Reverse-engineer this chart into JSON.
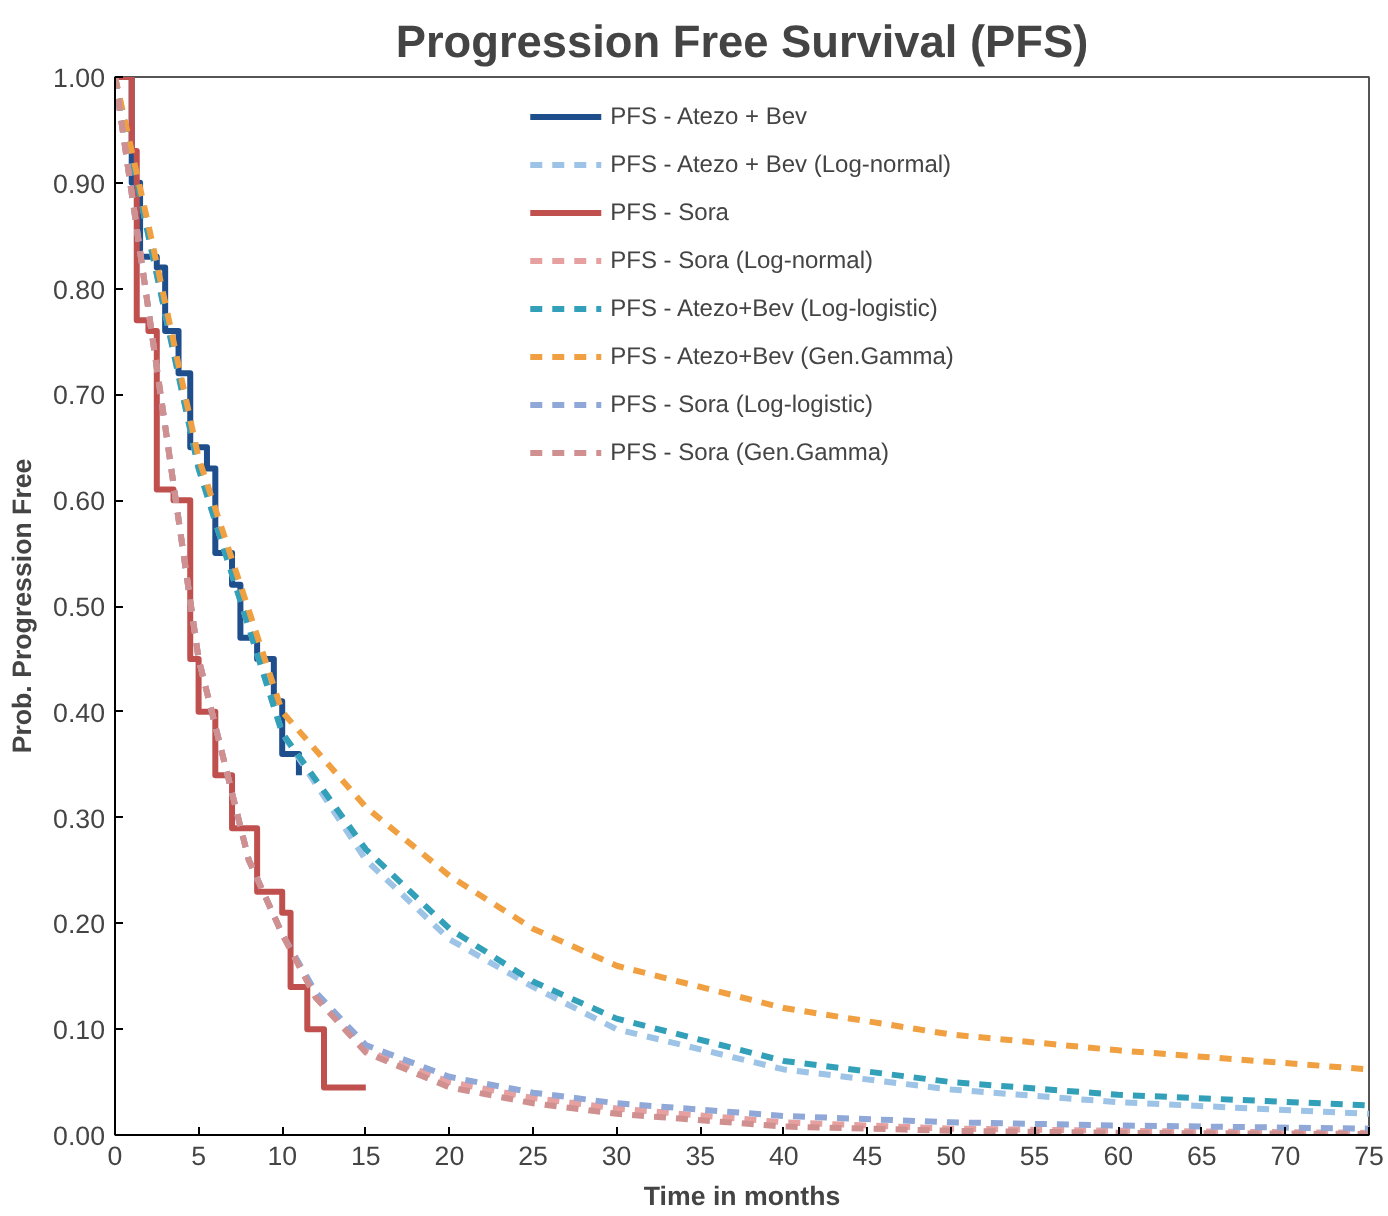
{
  "chart_data": {
    "type": "line",
    "title": "Progression Free Survival (PFS)",
    "xlabel": "Time in months",
    "ylabel": "Prob. Progression Free",
    "xlim": [
      0,
      75
    ],
    "xticks": [
      0,
      5,
      10,
      15,
      20,
      25,
      30,
      35,
      40,
      45,
      50,
      55,
      60,
      65,
      70,
      75
    ],
    "ylim": [
      0,
      1
    ],
    "yticks": [
      {
        "value": 0,
        "label": "0.00"
      },
      {
        "value": 0.1,
        "label": "0.10"
      },
      {
        "value": 0.2,
        "label": "0.20"
      },
      {
        "value": 0.3,
        "label": "0.30"
      },
      {
        "value": 0.4,
        "label": "0.40"
      },
      {
        "value": 0.5,
        "label": "0.50"
      },
      {
        "value": 0.6,
        "label": "0.60"
      },
      {
        "value": 0.7,
        "label": "0.70"
      },
      {
        "value": 0.8,
        "label": "0.80"
      },
      {
        "value": 0.9,
        "label": "0.90"
      },
      {
        "value": 1,
        "label": "1.00"
      }
    ],
    "grid": false,
    "legend": "top",
    "marker": "none",
    "series": [
      {
        "name": "PFS - Atezo + Bev",
        "type": "step",
        "line_style": "solid",
        "color": "#1f4e8c",
        "x": [
          0,
          1,
          1.5,
          2.5,
          3,
          3.8,
          4.5,
          5.5,
          6,
          7,
          7.5,
          8.5,
          9.5,
          10,
          11
        ],
        "values": [
          1,
          0.9,
          0.83,
          0.82,
          0.76,
          0.72,
          0.65,
          0.63,
          0.55,
          0.52,
          0.47,
          0.45,
          0.41,
          0.36,
          0.34
        ]
      },
      {
        "name": "PFS - Atezo + Bev (Log-normal)",
        "line_style": "dashed",
        "color": "#9dc3e6",
        "x": [
          0,
          2,
          5,
          10,
          15,
          20,
          25,
          30,
          40,
          50,
          60,
          75
        ],
        "values": [
          1,
          0.85,
          0.63,
          0.38,
          0.26,
          0.185,
          0.14,
          0.1,
          0.062,
          0.043,
          0.031,
          0.02
        ]
      },
      {
        "name": "PFS - Sora",
        "type": "step",
        "line_style": "solid",
        "color": "#c0504d",
        "x": [
          0,
          1,
          1.3,
          2,
          2.5,
          3.5,
          4.5,
          5,
          6,
          7,
          8.5,
          10,
          10.5,
          11.5,
          12.5,
          15
        ],
        "values": [
          1,
          0.93,
          0.77,
          0.76,
          0.61,
          0.6,
          0.45,
          0.4,
          0.34,
          0.29,
          0.23,
          0.21,
          0.14,
          0.1,
          0.045,
          0.045
        ]
      },
      {
        "name": "PFS - Sora (Log-normal)",
        "line_style": "dashed",
        "color": "#e6a0a0",
        "x": [
          0,
          2,
          5,
          8,
          10,
          12,
          15,
          20,
          25,
          30,
          40,
          50,
          60,
          75
        ],
        "values": [
          1,
          0.78,
          0.45,
          0.26,
          0.19,
          0.13,
          0.08,
          0.05,
          0.035,
          0.025,
          0.012,
          0.006,
          0.004,
          0.002
        ]
      },
      {
        "name": "PFS - Atezo+Bev (Log-logistic)",
        "line_style": "dashed",
        "color": "#31a0b8",
        "x": [
          0,
          2,
          5,
          10,
          15,
          20,
          25,
          30,
          40,
          50,
          60,
          75
        ],
        "values": [
          1,
          0.85,
          0.63,
          0.38,
          0.27,
          0.195,
          0.145,
          0.11,
          0.07,
          0.05,
          0.038,
          0.028
        ]
      },
      {
        "name": "PFS - Atezo+Bev (Gen.Gamma)",
        "line_style": "dashed",
        "color": "#f0a040",
        "x": [
          0,
          2,
          5,
          10,
          15,
          20,
          25,
          30,
          40,
          50,
          60,
          75
        ],
        "values": [
          1,
          0.86,
          0.64,
          0.4,
          0.31,
          0.245,
          0.195,
          0.16,
          0.12,
          0.095,
          0.08,
          0.062
        ]
      },
      {
        "name": "PFS - Sora (Log-logistic)",
        "line_style": "dashed",
        "color": "#8fa8d8",
        "x": [
          0,
          2,
          5,
          8,
          10,
          12,
          15,
          20,
          25,
          30,
          40,
          50,
          60,
          75
        ],
        "values": [
          1,
          0.78,
          0.45,
          0.26,
          0.19,
          0.135,
          0.085,
          0.055,
          0.04,
          0.03,
          0.018,
          0.012,
          0.009,
          0.006
        ]
      },
      {
        "name": "PFS - Sora (Gen.Gamma)",
        "line_style": "dashed",
        "color": "#d09090",
        "x": [
          0,
          2,
          5,
          8,
          10,
          12,
          15,
          20,
          25,
          30,
          40,
          50,
          60,
          75
        ],
        "values": [
          1,
          0.78,
          0.45,
          0.26,
          0.19,
          0.13,
          0.078,
          0.045,
          0.03,
          0.02,
          0.008,
          0.004,
          0.002,
          0.001
        ]
      }
    ]
  }
}
